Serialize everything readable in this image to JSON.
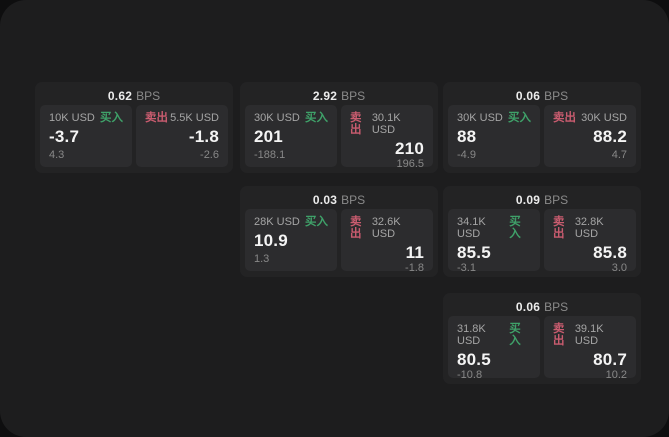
{
  "window": {
    "surface_color": "#1d1d1e",
    "backdrop_color": "#0e0e0f"
  },
  "labels": {
    "bps_unit": "BPS",
    "buy": "买入",
    "sell": "卖出"
  },
  "colors": {
    "buy_green": "#3fa169",
    "sell_red": "#c95c6f",
    "card_bg": "#232324",
    "panel_bg": "#2c2c2e"
  },
  "cards": [
    {
      "bps": "0.62",
      "buy": {
        "notional": "10K USD",
        "value": "-3.7",
        "sub": "4.3"
      },
      "sell": {
        "notional": "5.5K USD",
        "value": "-1.8",
        "sub": "-2.6"
      }
    },
    {
      "bps": "2.92",
      "buy": {
        "notional": "30K USD",
        "value": "201",
        "sub": "-188.1"
      },
      "sell": {
        "notional": "30.1K USD",
        "value": "210",
        "sub": "196.5"
      }
    },
    {
      "bps": "0.06",
      "buy": {
        "notional": "30K USD",
        "value": "88",
        "sub": "-4.9"
      },
      "sell": {
        "notional": "30K USD",
        "value": "88.2",
        "sub": "4.7"
      }
    },
    {
      "bps": "0.03",
      "buy": {
        "notional": "28K USD",
        "value": "10.9",
        "sub": "1.3"
      },
      "sell": {
        "notional": "32.6K USD",
        "value": "11",
        "sub": "-1.8"
      }
    },
    {
      "bps": "0.09",
      "buy": {
        "notional": "34.1K USD",
        "value": "85.5",
        "sub": "-3.1"
      },
      "sell": {
        "notional": "32.8K USD",
        "value": "85.8",
        "sub": "3.0"
      }
    },
    {
      "bps": "0.06",
      "buy": {
        "notional": "31.8K USD",
        "value": "80.5",
        "sub": "-10.8"
      },
      "sell": {
        "notional": "39.1K USD",
        "value": "80.7",
        "sub": "10.2"
      }
    }
  ]
}
